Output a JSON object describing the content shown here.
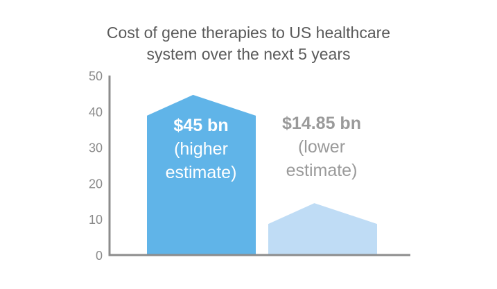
{
  "chart_data": {
    "type": "bar",
    "title": [
      "Cost of gene therapies to US healthcare",
      "system over the next 5 years"
    ],
    "xlabel": "",
    "ylabel": "",
    "ylim": [
      0,
      50
    ],
    "yticks": [
      0,
      10,
      20,
      30,
      40,
      50
    ],
    "grid": false,
    "bars": [
      {
        "value": 45,
        "label_value": "$45 bn",
        "label_desc": [
          "(higher",
          "estimate)"
        ],
        "color": "#60b4e8",
        "label_color": "#ffffff",
        "label_position": "inside"
      },
      {
        "value": 14.85,
        "label_value": "$14.85 bn",
        "label_desc": [
          "(lower",
          "estimate)"
        ],
        "color": "#bfdcf5",
        "label_color": "#9a9a9a",
        "label_position": "above"
      }
    ],
    "colors": {
      "axis": "#8c8c8c",
      "tick_text": "#8c8c8c",
      "title_text": "#5a5a5a"
    }
  }
}
